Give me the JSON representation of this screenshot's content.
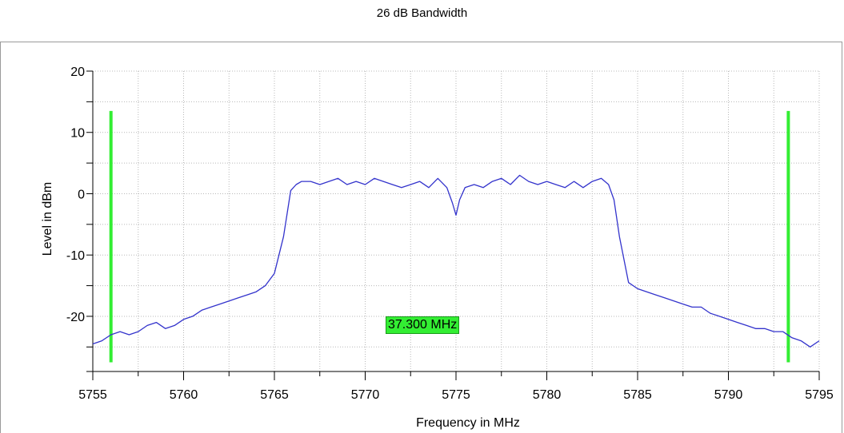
{
  "chart_data": {
    "type": "line",
    "title": "26 dB Bandwidth",
    "xlabel": "Frequency in MHz",
    "ylabel": "Level in dBm",
    "xlim": [
      5755,
      5795
    ],
    "ylim": [
      -29,
      20
    ],
    "xticks": [
      5755,
      5760,
      5765,
      5770,
      5775,
      5780,
      5785,
      5790,
      5795
    ],
    "yticks": [
      20,
      10,
      0,
      -10,
      -20
    ],
    "grid": true,
    "series": [
      {
        "color": "#3333cc",
        "x": [
          5755.0,
          5755.5,
          5756.0,
          5756.5,
          5757.0,
          5757.5,
          5758.0,
          5758.5,
          5759.0,
          5759.5,
          5760.0,
          5760.5,
          5761.0,
          5761.5,
          5762.0,
          5762.5,
          5763.0,
          5763.5,
          5764.0,
          5764.5,
          5765.0,
          5765.5,
          5765.9,
          5766.2,
          5766.5,
          5767.0,
          5767.5,
          5768.0,
          5768.5,
          5769.0,
          5769.5,
          5770.0,
          5770.5,
          5771.0,
          5771.5,
          5772.0,
          5772.5,
          5773.0,
          5773.5,
          5774.0,
          5774.5,
          5774.8,
          5775.0,
          5775.2,
          5775.5,
          5776.0,
          5776.5,
          5777.0,
          5777.5,
          5778.0,
          5778.5,
          5779.0,
          5779.5,
          5780.0,
          5780.5,
          5781.0,
          5781.5,
          5782.0,
          5782.5,
          5783.0,
          5783.4,
          5783.7,
          5784.0,
          5784.5,
          5785.0,
          5785.5,
          5786.0,
          5786.5,
          5787.0,
          5787.5,
          5788.0,
          5788.5,
          5789.0,
          5789.5,
          5790.0,
          5790.5,
          5791.0,
          5791.5,
          5792.0,
          5792.5,
          5793.0,
          5793.5,
          5794.0,
          5794.5,
          5795.0
        ],
        "y": [
          -24.5,
          -24.0,
          -23.0,
          -22.5,
          -23.0,
          -22.5,
          -21.5,
          -21.0,
          -22.0,
          -21.5,
          -20.5,
          -20.0,
          -19.0,
          -18.5,
          -18.0,
          -17.5,
          -17.0,
          -16.5,
          -16.0,
          -15.0,
          -13.0,
          -7.0,
          0.5,
          1.5,
          2.0,
          2.0,
          1.5,
          2.0,
          2.5,
          1.5,
          2.0,
          1.5,
          2.5,
          2.0,
          1.5,
          1.0,
          1.5,
          2.0,
          1.0,
          2.5,
          1.0,
          -1.5,
          -3.5,
          -1.0,
          1.0,
          1.5,
          1.0,
          2.0,
          2.5,
          1.5,
          3.0,
          2.0,
          1.5,
          2.0,
          1.5,
          1.0,
          2.0,
          1.0,
          2.0,
          2.5,
          1.5,
          -1.0,
          -7.0,
          -14.5,
          -15.5,
          -16.0,
          -16.5,
          -17.0,
          -17.5,
          -18.0,
          -18.5,
          -18.5,
          -19.5,
          -20.0,
          -20.5,
          -21.0,
          -21.5,
          -22.0,
          -22.0,
          -22.5,
          -22.5,
          -23.5,
          -24.0,
          -25.0,
          -24.0
        ]
      }
    ],
    "markers": [
      {
        "type": "vertical-line",
        "x": 5756,
        "color": "#33ee33"
      },
      {
        "type": "vertical-line",
        "x": 5793.3,
        "color": "#33ee33"
      }
    ],
    "annotations": [
      {
        "text": "37.300 MHz",
        "x": 5774.3,
        "y": -21.5,
        "background": "#33ee33"
      }
    ]
  }
}
